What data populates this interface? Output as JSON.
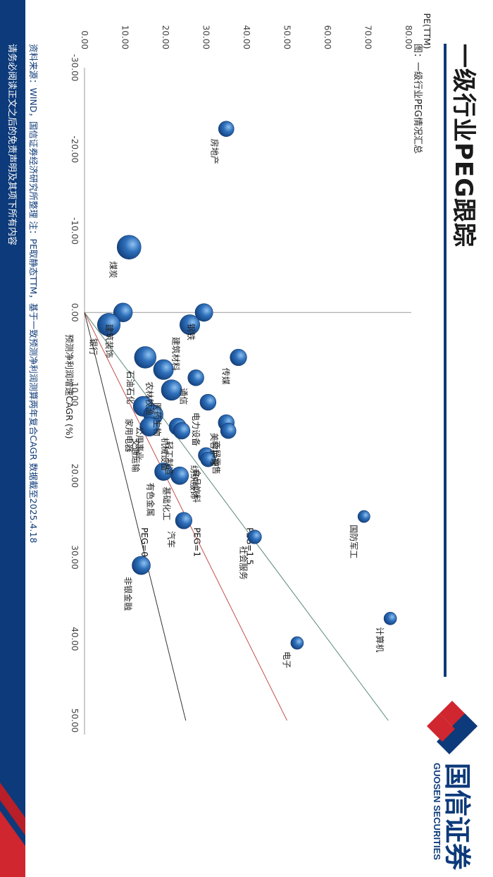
{
  "page": {
    "title": "一级行业PEG跟踪",
    "chart_caption": "图：一级行业PEG情况汇总",
    "source": "资料来源：WIND，国信证券经济研究所整理   注：PE取静态TTM，基于一致预测净利润测算两年复合CAGR   数据截至2025.4.18",
    "disclaimer": "请务必阅读正文之后的免责声明及其项下所有内容",
    "logo_cn": "国信证券",
    "logo_en": "GUOSEN SECURITIES",
    "logo_icon": "guosen-logo-mark-icon",
    "brand_color": "#0d3a7a",
    "accent_color": "#d0262f"
  },
  "chart_data": {
    "type": "scatter",
    "title": "一级行业PEG情况汇总",
    "xlabel": "预测净利润增速CAGR (%)",
    "ylabel": "PE(TTM)",
    "xlim": [
      -30,
      50
    ],
    "ylim": [
      0,
      80
    ],
    "xticks": [
      "-30.00",
      "-20.00",
      "-10.00",
      "0.00",
      "10.00",
      "20.00",
      "30.00",
      "40.00",
      "50.00"
    ],
    "yticks": [
      "0.00",
      "10.00",
      "20.00",
      "30.00",
      "40.00",
      "50.00",
      "60.00",
      "70.00",
      "80.00"
    ],
    "bubble_color": "#2e6fba",
    "reference_lines": [
      {
        "label": "PEG=1.5",
        "slope": 1.5,
        "color": "#5c8a7a"
      },
      {
        "label": "PEG=1",
        "slope": 1.0,
        "color": "#c0504d"
      },
      {
        "label": "PEG=0.5",
        "slope": 0.5,
        "color": "#333333"
      }
    ],
    "points": [
      {
        "name": "计算机",
        "x": 37.5,
        "y": 75.5,
        "size": 1.0
      },
      {
        "name": "电子",
        "x": 40.5,
        "y": 52.5,
        "size": 1.0
      },
      {
        "name": "国防军工",
        "x": 25.0,
        "y": 69.0,
        "size": 0.9
      },
      {
        "name": "社会服务",
        "x": 27.5,
        "y": 42.0,
        "size": 1.2
      },
      {
        "name": "房地产",
        "x": -22.5,
        "y": 35.0,
        "size": 1.5
      },
      {
        "name": "煤炭",
        "x": -8.0,
        "y": 11.0,
        "size": 3.0
      },
      {
        "name": "钢铁",
        "x": 0.0,
        "y": 29.5,
        "size": 1.9
      },
      {
        "name": "建筑材料",
        "x": 1.5,
        "y": 26.0,
        "size": 2.3
      },
      {
        "name": "传媒",
        "x": 5.5,
        "y": 38.0,
        "size": 1.7
      },
      {
        "name": "建筑装饰",
        "x": 0.0,
        "y": 9.5,
        "size": 2.1
      },
      {
        "name": "银行",
        "x": 1.5,
        "y": 6.0,
        "size": 2.8
      },
      {
        "name": "通信",
        "x": 8.0,
        "y": 27.5,
        "size": 1.6
      },
      {
        "name": "石油石化",
        "x": 5.5,
        "y": 15.0,
        "size": 2.6
      },
      {
        "name": "电力设备",
        "x": 11.0,
        "y": 30.5,
        "size": 1.6
      },
      {
        "name": "农林牧渔",
        "x": 7.0,
        "y": 19.5,
        "size": 2.3
      },
      {
        "name": "医药生物",
        "x": 9.5,
        "y": 21.5,
        "size": 2.4
      },
      {
        "name": "家用电器",
        "x": 11.5,
        "y": 14.5,
        "size": 2.3
      },
      {
        "name": "公用事业",
        "x": 12.5,
        "y": 17.0,
        "size": 2.2
      },
      {
        "name": "交通运输",
        "x": 14.0,
        "y": 16.0,
        "size": 2.1
      },
      {
        "name": "机械设备",
        "x": 14.0,
        "y": 23.0,
        "size": 1.8
      },
      {
        "name": "轻工制造",
        "x": 14.5,
        "y": 24.0,
        "size": 1.7
      },
      {
        "name": "美容护理",
        "x": 13.5,
        "y": 35.0,
        "size": 1.6
      },
      {
        "name": "商贸零售",
        "x": 14.5,
        "y": 35.5,
        "size": 1.5
      },
      {
        "name": "纺织服饰",
        "x": 17.5,
        "y": 30.0,
        "size": 1.5
      },
      {
        "name": "食品饮料",
        "x": 18.0,
        "y": 30.5,
        "size": 1.4
      },
      {
        "name": "有色金属",
        "x": 19.5,
        "y": 19.5,
        "size": 1.9
      },
      {
        "name": "基础化工",
        "x": 20.0,
        "y": 23.5,
        "size": 1.9
      },
      {
        "name": "汽车",
        "x": 25.5,
        "y": 24.5,
        "size": 1.7
      },
      {
        "name": "非银金融",
        "x": 31.0,
        "y": 14.0,
        "size": 2.0
      }
    ]
  }
}
